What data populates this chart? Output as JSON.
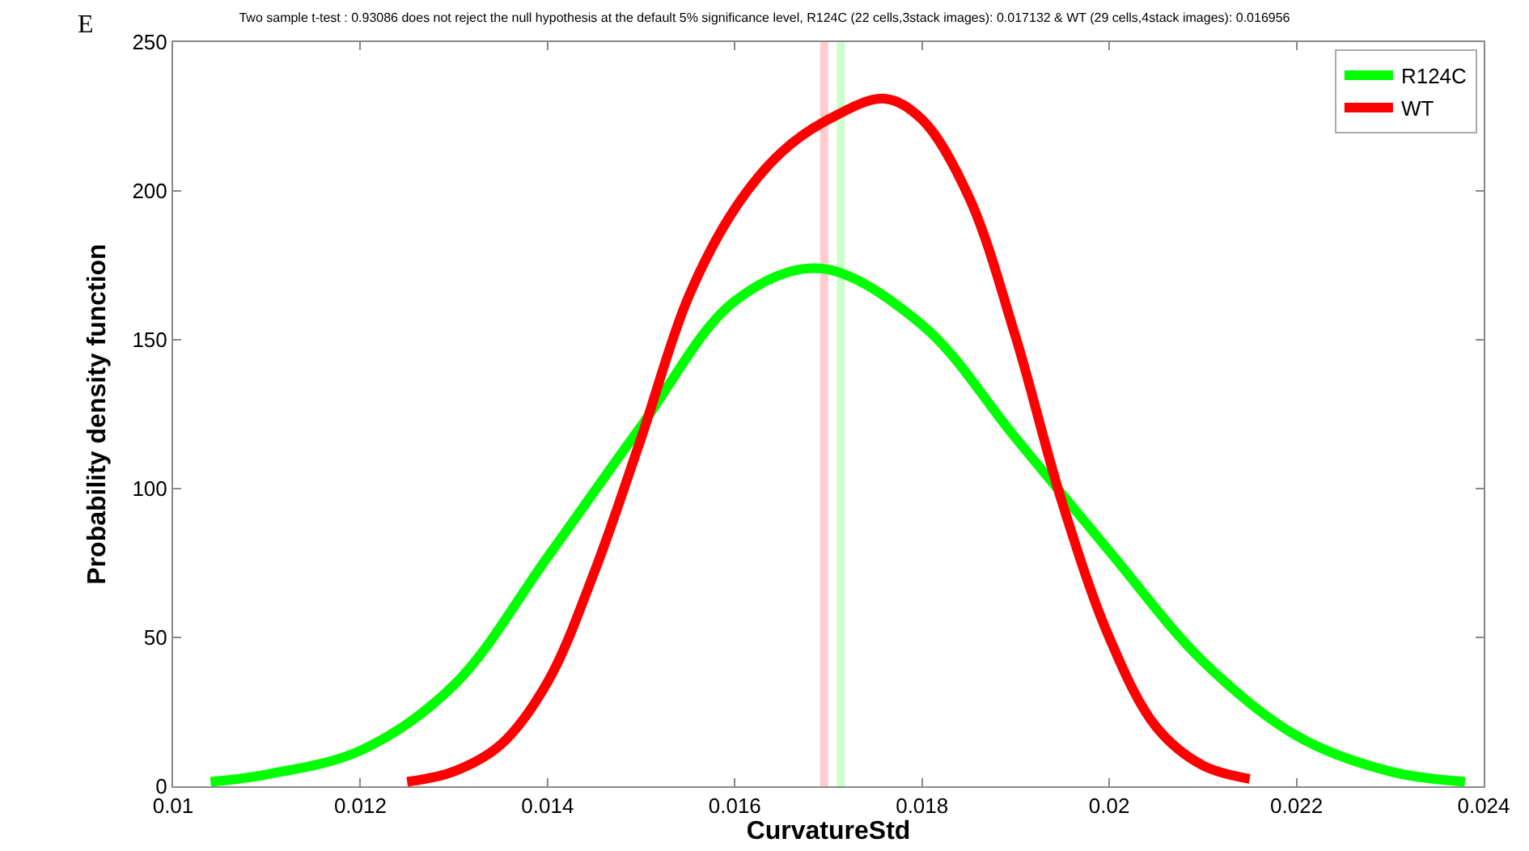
{
  "chart_data": {
    "type": "line",
    "title": "Two sample t-test : 0.93086 does not reject the null hypothesis at the default 5% significance level, R124C (22 cells,3stack images): 0.017132 & WT (29 cells,4stack images): 0.016956",
    "xlabel": "CurvatureStd",
    "ylabel": "Probability density function",
    "annotations": [
      "E"
    ],
    "xlim": [
      0.01,
      0.024
    ],
    "xticks": [
      0.01,
      0.012,
      0.014,
      0.016,
      0.018,
      0.02,
      0.022,
      0.024
    ],
    "ylim": [
      0,
      250
    ],
    "yticks": [
      0,
      50,
      100,
      150,
      200,
      250
    ],
    "grid": false,
    "legend": "top right",
    "line_style": "solid",
    "marker": "none",
    "ref_lines": [
      {
        "axis": "x",
        "value": 0.016956,
        "label": null,
        "color": "#ffcccc"
      },
      {
        "axis": "x",
        "value": 0.017132,
        "label": null,
        "color": "#ccffcc"
      }
    ],
    "series": [
      {
        "name": "R124C",
        "color": "#00ff00",
        "x": [
          0.0104,
          0.011,
          0.012,
          0.013,
          0.014,
          0.015,
          0.016,
          0.0169,
          0.018,
          0.019,
          0.02,
          0.021,
          0.022,
          0.023,
          0.0238
        ],
        "values": [
          1.5,
          4,
          12,
          34,
          77,
          121,
          163,
          174,
          155,
          117,
          79,
          42,
          17,
          5,
          1.5
        ]
      },
      {
        "name": "WT",
        "color": "#ff0000",
        "x": [
          0.0125,
          0.013,
          0.0135,
          0.014,
          0.0145,
          0.015,
          0.0155,
          0.016,
          0.0165,
          0.017,
          0.0176,
          0.018,
          0.0185,
          0.019,
          0.0195,
          0.02,
          0.0205,
          0.021,
          0.0215
        ],
        "values": [
          1.5,
          5,
          14,
          35,
          72,
          117,
          164,
          194,
          213,
          224,
          231,
          224,
          198,
          151,
          95,
          50,
          20,
          7,
          2.5
        ]
      }
    ]
  }
}
